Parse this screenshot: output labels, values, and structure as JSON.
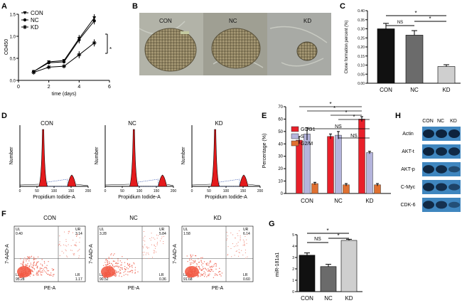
{
  "panels": {
    "A": "A",
    "B": "B",
    "C": "C",
    "D": "D",
    "E": "E",
    "F": "F",
    "G": "G",
    "H": "H"
  },
  "chart_data": [
    {
      "id": "A",
      "type": "line",
      "x": [
        1,
        2,
        3,
        4,
        5
      ],
      "series": [
        {
          "name": "CON",
          "values": [
            0.2,
            0.42,
            0.45,
            0.95,
            1.42
          ]
        },
        {
          "name": "NC",
          "values": [
            0.2,
            0.4,
            0.42,
            0.92,
            1.35
          ]
        },
        {
          "name": "KD",
          "values": [
            0.18,
            0.3,
            0.32,
            0.58,
            0.85
          ]
        }
      ],
      "xlabel": "time (days)",
      "ylabel": "OD450",
      "xlim": [
        0,
        6
      ],
      "ylim": [
        0,
        1.5
      ],
      "xticks": [
        "0",
        "2",
        "4",
        "6"
      ],
      "yticks": [
        "0.0",
        "0.5",
        "1.0",
        "1.5"
      ],
      "annotation": "*"
    },
    {
      "id": "B",
      "type": "image_panel",
      "labels": [
        "CON",
        "NC",
        "KD"
      ]
    },
    {
      "id": "C",
      "type": "bar",
      "categories": [
        "CON",
        "NC",
        "KD"
      ],
      "values": [
        0.3,
        0.265,
        0.092
      ],
      "errors": [
        0.03,
        0.025,
        0.01
      ],
      "colors": [
        "#111111",
        "#6b6b6b",
        "#cfcfcf"
      ],
      "ylabel": "Clone formation percent (%)",
      "ylim": [
        0,
        0.4
      ],
      "yticks": [
        "0.00",
        "0.05",
        "0.10",
        "0.15",
        "0.20",
        "0.25",
        "0.30",
        "0.35",
        "0.40"
      ],
      "sig": [
        "NS",
        "*",
        "*"
      ]
    },
    {
      "id": "D",
      "type": "histogram",
      "titles": [
        "CON",
        "NC",
        "KD"
      ],
      "xlabel": "Propidium Iodide-A",
      "ylabel": "Number",
      "xticks": [
        "0",
        "50",
        "100",
        "150",
        "200"
      ]
    },
    {
      "id": "E",
      "type": "bar",
      "categories": [
        "CON",
        "NC",
        "KD"
      ],
      "series": [
        {
          "name": "G0/G1",
          "values": [
            43,
            46,
            60
          ],
          "errors": [
            3,
            2,
            2
          ],
          "color": "#e8202a"
        },
        {
          "name": "S",
          "values": [
            48,
            47,
            33
          ],
          "errors": [
            5,
            3,
            1
          ],
          "color": "#b4b4dc"
        },
        {
          "name": "G2/M",
          "values": [
            8,
            7,
            7
          ],
          "errors": [
            1,
            1,
            1
          ],
          "color": "#e07030"
        }
      ],
      "ylabel": "Percentage (%)",
      "ylim": [
        0,
        70
      ],
      "yticks": [
        "0",
        "10",
        "20",
        "30",
        "40",
        "50",
        "60",
        "70"
      ],
      "sig": [
        "*",
        "*",
        "*",
        "*",
        "NS",
        "NS"
      ]
    },
    {
      "id": "F",
      "type": "scatter",
      "titles": [
        "CON",
        "NC",
        "KD"
      ],
      "xlabel": "PE-A",
      "ylabel": "7-AAD-A",
      "quadrants": [
        {
          "UL": "0.40",
          "UR": "3.14",
          "LL": "95.28",
          "LR": "1.17"
        },
        {
          "UL": "3.28",
          "UR": "5.84",
          "LL": "90.52",
          "LR": "0.36"
        },
        {
          "UL": "1.58",
          "UR": "6.14",
          "LL": "91.68",
          "LR": "0.60"
        }
      ],
      "qlabels": [
        "UL",
        "UR",
        "LL",
        "LR"
      ]
    },
    {
      "id": "G",
      "type": "bar",
      "categories": [
        "CON",
        "NC",
        "KD"
      ],
      "values": [
        3.2,
        2.2,
        4.5
      ],
      "errors": [
        0.2,
        0.2,
        0.1
      ],
      "colors": [
        "#111111",
        "#6b6b6b",
        "#cfcfcf"
      ],
      "ylabel": "miR-181a1",
      "ylim": [
        0,
        5
      ],
      "yticks": [
        "0",
        "1",
        "2",
        "3",
        "4",
        "5"
      ],
      "sig": [
        "NS",
        "*",
        "*"
      ]
    },
    {
      "id": "H",
      "type": "blot",
      "columns": [
        "CON",
        "NC",
        "KD"
      ],
      "rows": [
        "Actin",
        "AKT-t",
        "AKT-p",
        "C-Myc",
        "CDK-6"
      ],
      "intensity": [
        [
          1.0,
          1.0,
          1.0
        ],
        [
          1.0,
          0.95,
          0.9
        ],
        [
          0.95,
          0.9,
          0.45
        ],
        [
          0.95,
          0.85,
          0.55
        ],
        [
          0.9,
          0.8,
          0.4
        ]
      ]
    }
  ]
}
